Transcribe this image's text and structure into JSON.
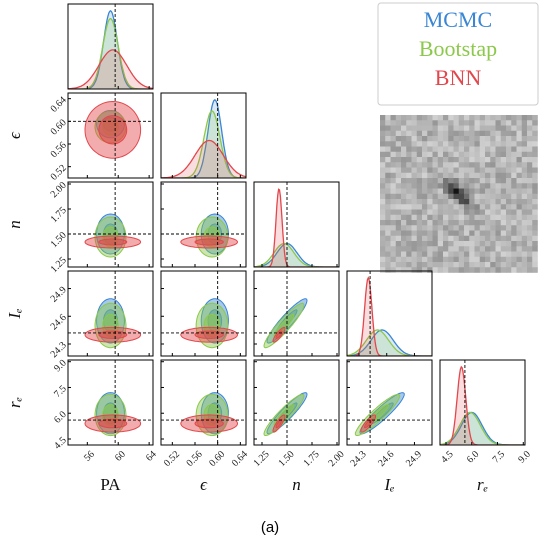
{
  "chart_data": {
    "type": "corner",
    "caption": "(a)",
    "params": [
      {
        "label": "PA",
        "lim": [
          53.5,
          64.5
        ],
        "ticks": [
          56,
          60,
          64
        ],
        "truth": 59.6
      },
      {
        "label": "ϵ",
        "lim": [
          0.5,
          0.65
        ],
        "ticks": [
          0.52,
          0.56,
          {
            "value": 0.6,
            "label": "0.60"
          },
          0.64
        ],
        "truth": 0.6
      },
      {
        "label": "n",
        "lim": [
          1.17,
          2.02
        ],
        "ticks": [
          1.25,
          {
            "value": 1.5,
            "label": "1.50"
          },
          1.75,
          {
            "value": 2,
            "label": "2.00"
          }
        ],
        "truth": 1.5
      },
      {
        "label": "Iₑ",
        "lim": [
          24.17,
          25.09
        ],
        "ticks": [
          24.3,
          24.6,
          24.9
        ],
        "truth": 24.42
      },
      {
        "label": "rₑ",
        "lim": [
          4.15,
          9.1
        ],
        "ticks": [
          4.5,
          {
            "value": 6,
            "label": "6.0"
          },
          7.5,
          {
            "value": 9,
            "label": "9.0"
          }
        ],
        "truth": 5.6
      }
    ],
    "series": [
      {
        "name": "MCMC",
        "color": "#3a86d4",
        "mean": [
          59.0,
          0.595,
          1.5,
          24.55,
          6.0
        ],
        "sd": [
          0.9,
          0.012,
          0.1,
          0.12,
          0.6
        ],
        "corr": [
          [
            1,
            0,
            0,
            0,
            0
          ],
          [
            0,
            1,
            0,
            0,
            0
          ],
          [
            0,
            0,
            1,
            0.92,
            0.92
          ],
          [
            0,
            0,
            0.92,
            1,
            0.92
          ],
          [
            0,
            0,
            0.92,
            0.92,
            1
          ]
        ]
      },
      {
        "name": "Bootstap",
        "color": "#8cc84b",
        "mean": [
          59.0,
          0.59,
          1.47,
          24.5,
          5.9
        ],
        "sd": [
          1.0,
          0.014,
          0.1,
          0.12,
          0.6
        ],
        "corr": [
          [
            1,
            0,
            0,
            0,
            0
          ],
          [
            0,
            1,
            0,
            0,
            0
          ],
          [
            0,
            0,
            1,
            0.92,
            0.92
          ],
          [
            0,
            0,
            0.92,
            1,
            0.92
          ],
          [
            0,
            0,
            0.92,
            0.92,
            1
          ]
        ]
      },
      {
        "name": "BNN",
        "color": "#e2474c",
        "mean": [
          59.3,
          0.585,
          1.42,
          24.4,
          5.4
        ],
        "sd": [
          1.8,
          0.025,
          0.03,
          0.04,
          0.25
        ],
        "corr": [
          [
            1,
            0,
            0,
            0,
            0
          ],
          [
            0,
            1,
            0,
            0,
            0
          ],
          [
            0,
            0,
            1,
            0.85,
            0.85
          ],
          [
            0,
            0,
            0.85,
            1,
            0.85
          ],
          [
            0,
            0,
            0.85,
            0.85,
            1
          ]
        ]
      }
    ]
  }
}
